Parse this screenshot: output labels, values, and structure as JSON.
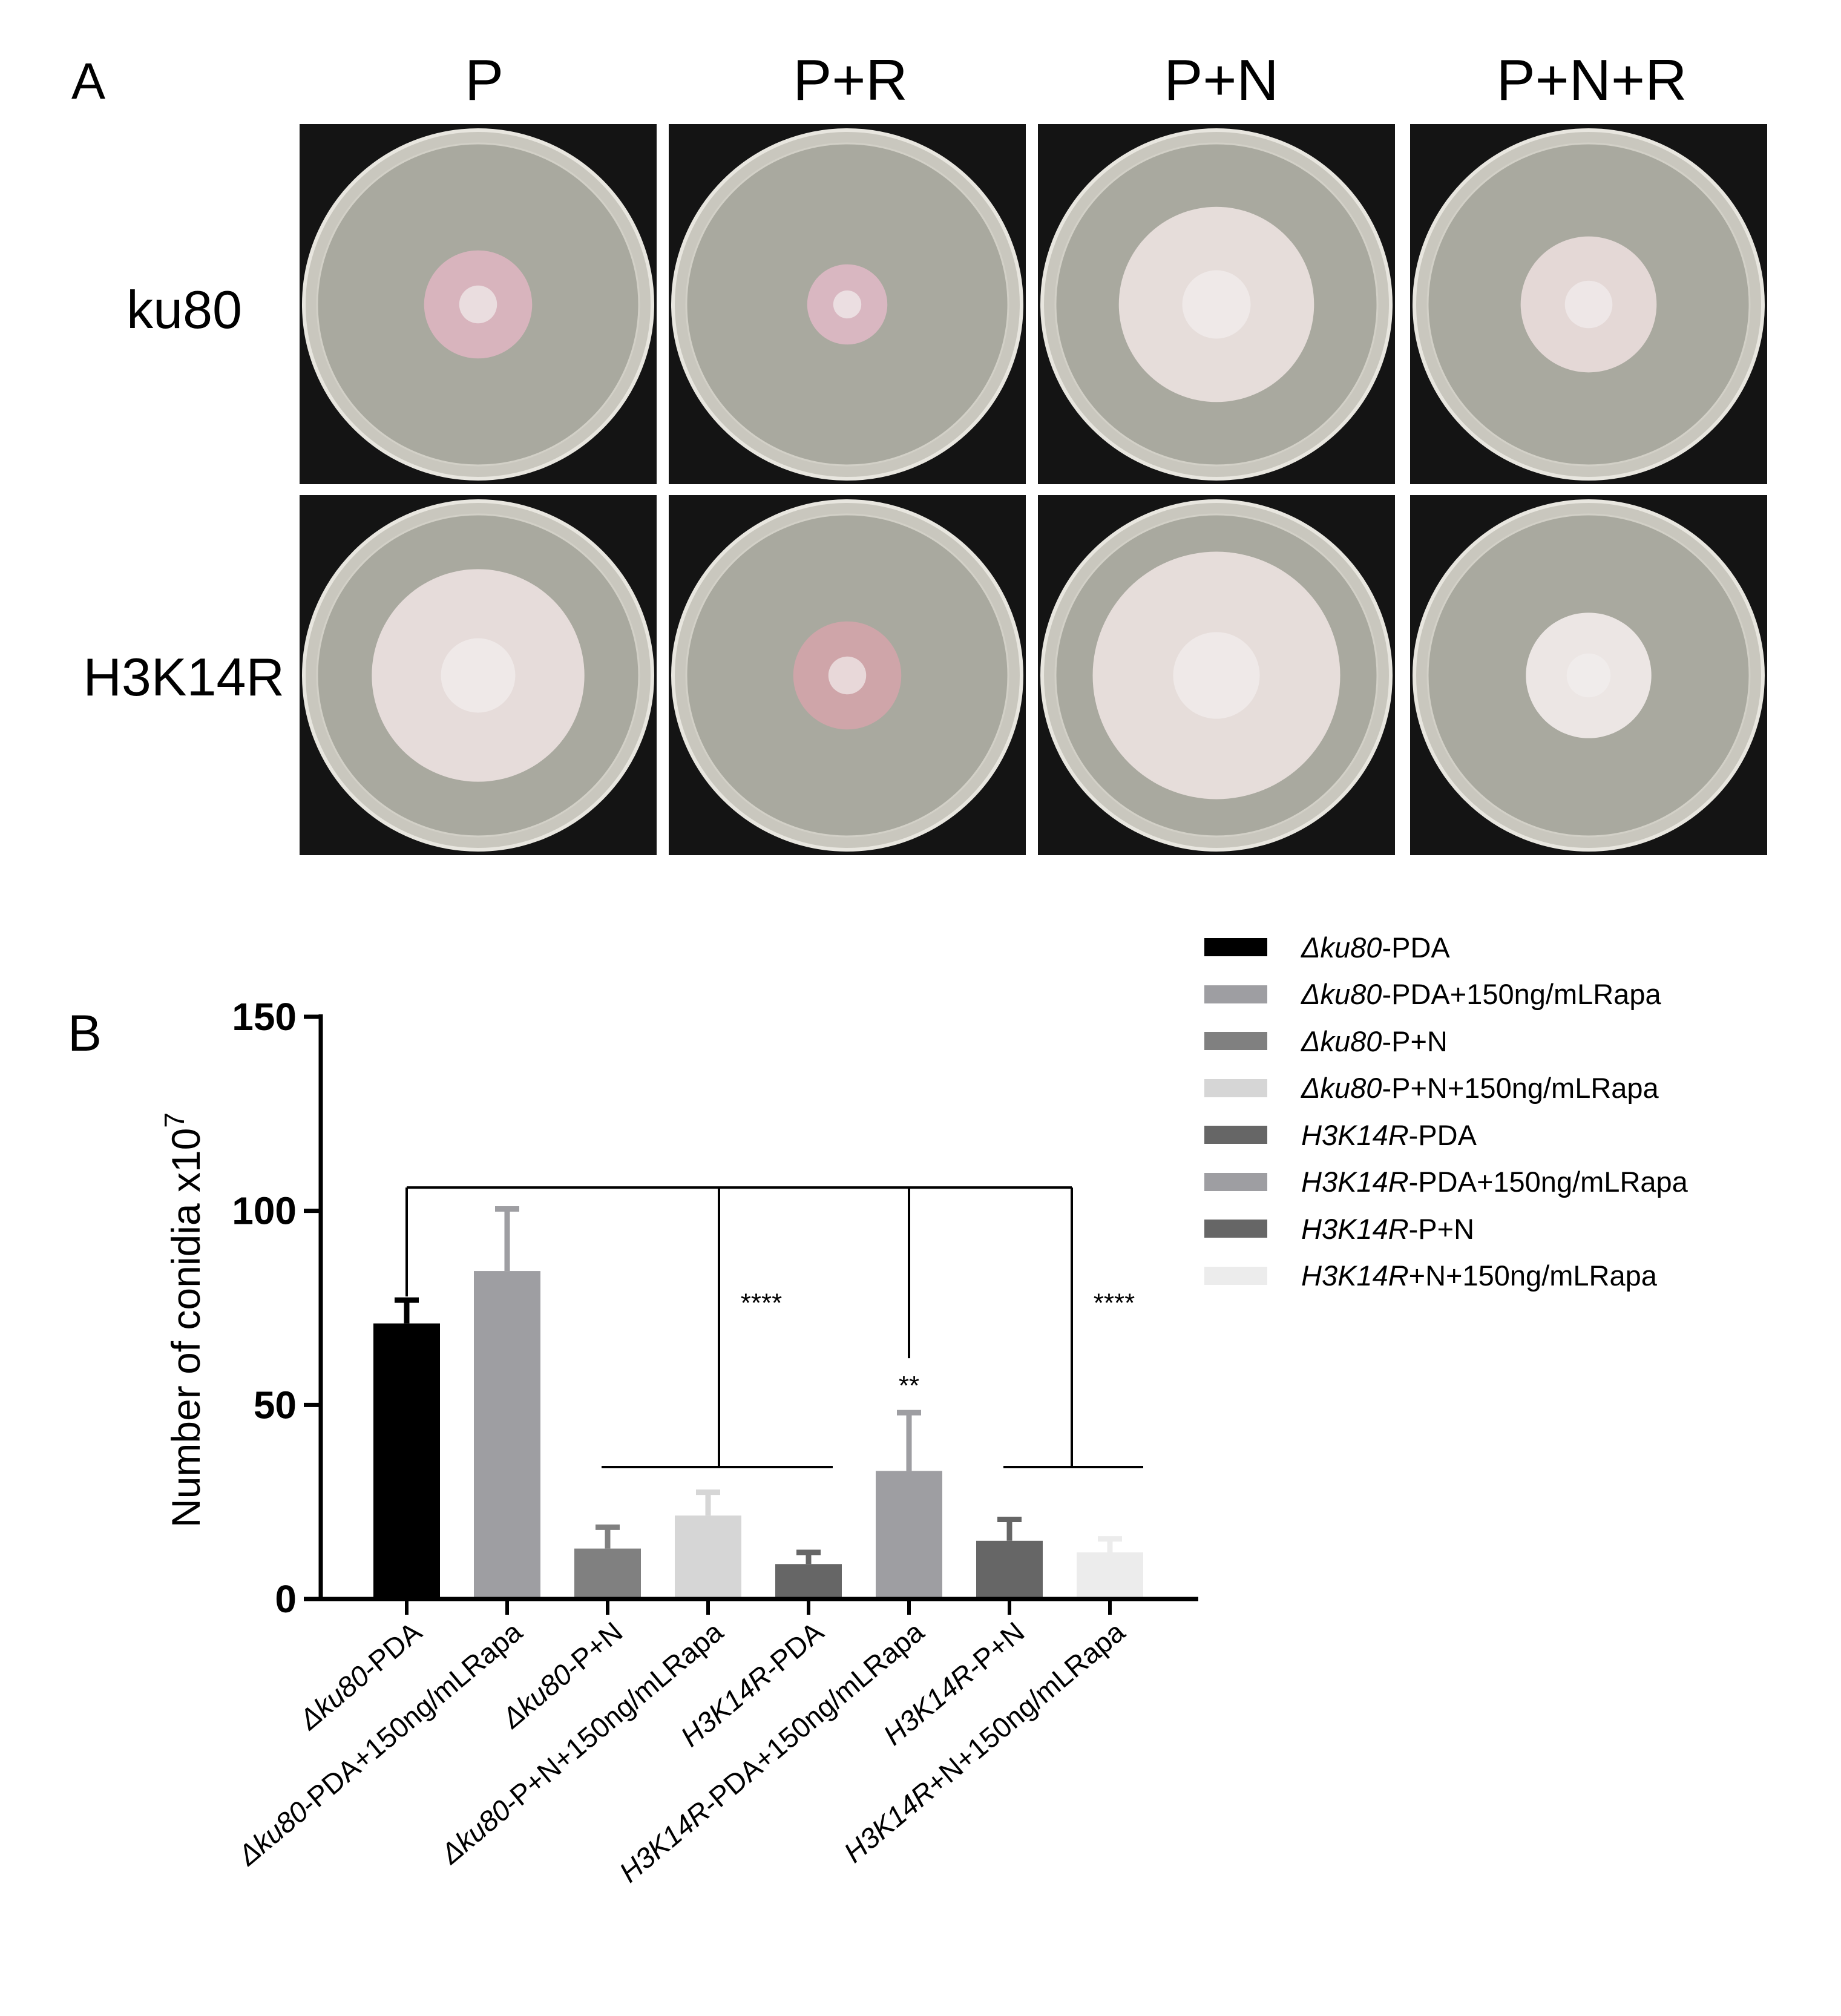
{
  "panel_a": {
    "letter": "A",
    "columns": [
      "P",
      "P+R",
      "P+N",
      "P+N+R"
    ],
    "rows": [
      "ku80",
      "H3K14R"
    ],
    "colony_relative_size": [
      [
        0.31,
        0.23,
        0.56,
        0.39
      ],
      [
        0.61,
        0.31,
        0.71,
        0.36
      ]
    ],
    "colony_colors": [
      [
        "#d8b4bd",
        "#d9b7c1",
        "#e6ddda",
        "#e4d8d6"
      ],
      [
        "#e6dcda",
        "#cfa5a9",
        "#e6ddda",
        "#ece6e4"
      ]
    ]
  },
  "panel_b": {
    "letter": "B",
    "legend": [
      {
        "italic": "Δku80",
        "rest": "-PDA",
        "color": "#000000"
      },
      {
        "italic": "Δku80",
        "rest": "-PDA+150ng/mLRapa",
        "color": "#9e9ea2"
      },
      {
        "italic": "Δku80",
        "rest": "-P+N",
        "color": "#808080"
      },
      {
        "italic": "Δku80",
        "rest": "-P+N+150ng/mLRapa",
        "color": "#d6d6d6"
      },
      {
        "italic": "H3K14R",
        "rest": "-PDA",
        "color": "#666666"
      },
      {
        "italic": "H3K14R",
        "rest": "-PDA+150ng/mLRapa",
        "color": "#9e9ea2"
      },
      {
        "italic": "H3K14R",
        "rest": "-P+N",
        "color": "#666666"
      },
      {
        "italic": "H3K14R",
        "rest": "+N+150ng/mLRapa",
        "color": "#ececec"
      }
    ]
  },
  "chart_data": {
    "type": "bar",
    "ylabel": "Number of conidia x10",
    "ylabel_sup": "7",
    "ylim": [
      0,
      150
    ],
    "yticks": [
      0,
      50,
      100,
      150
    ],
    "categories": [
      {
        "italic": "Δku80",
        "rest": "-PDA"
      },
      {
        "italic": "Δku80",
        "rest": "-PDA+150ng/mLRapa"
      },
      {
        "italic": "Δku80",
        "rest": "-P+N"
      },
      {
        "italic": "Δku80",
        "rest": "-P+N+150ng/mLRapa"
      },
      {
        "italic": "H3K14R",
        "rest": "-PDA"
      },
      {
        "italic": "H3K14R",
        "rest": "-PDA+150ng/mLRapa"
      },
      {
        "italic": "H3K14R",
        "rest": "-P+N"
      },
      {
        "italic": "H3K14R",
        "rest": "+N+150ng/mLRapa"
      }
    ],
    "values": [
      71,
      84.5,
      13,
      21.5,
      9,
      33,
      15,
      12
    ],
    "errors": [
      6,
      16,
      5.5,
      6,
      3,
      15,
      5.5,
      3.5
    ],
    "colors": [
      "#000000",
      "#9e9ea2",
      "#808080",
      "#d6d6d6",
      "#666666",
      "#9e9ea2",
      "#666666",
      "#ececec"
    ],
    "annotations": [
      {
        "text": "****",
        "group": "left"
      },
      {
        "text": "**",
        "bar": 5
      },
      {
        "text": "****",
        "group": "right"
      }
    ],
    "bracket_level": 106,
    "group_line_level": 34
  }
}
